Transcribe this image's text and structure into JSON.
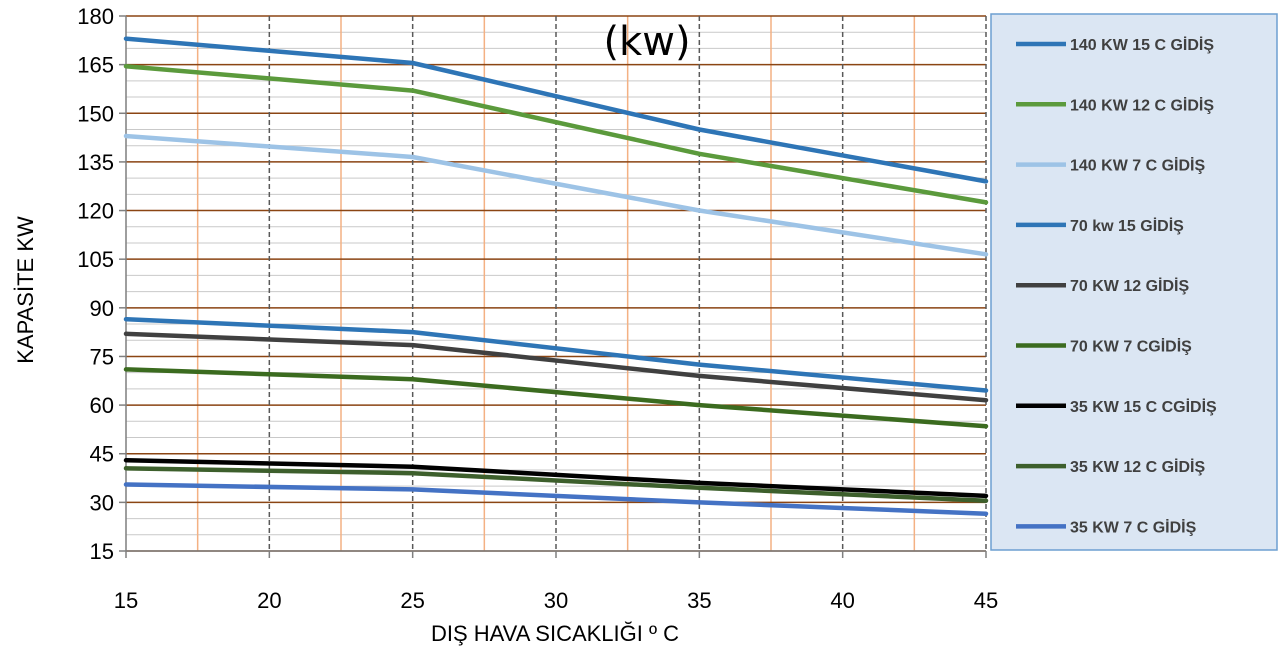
{
  "chart_data": {
    "type": "line",
    "title": "(kw)",
    "xlabel": "DIŞ HAVA SICAKLIĞI º C",
    "ylabel": "KAPASİTE KW",
    "xlim": [
      15,
      45
    ],
    "ylim": [
      15,
      180
    ],
    "x_ticks": [
      15,
      20,
      25,
      30,
      35,
      40,
      45
    ],
    "y_ticks": [
      15,
      30,
      45,
      60,
      75,
      90,
      105,
      120,
      135,
      150,
      165,
      180
    ],
    "x_tick_labels": [
      "15",
      "20",
      "25",
      "30",
      "35",
      "40",
      "45"
    ],
    "y_tick_labels": [
      "15",
      "30",
      "45",
      "60",
      "75",
      "90",
      "105",
      "120",
      "135",
      "150",
      "165",
      "180"
    ],
    "x": [
      15,
      25,
      35,
      45
    ],
    "legend_position": "right",
    "grid": true,
    "series": [
      {
        "name": "140 KW 15 C GİDİŞ",
        "color": "#2e75b6",
        "values": [
          173,
          165.5,
          145,
          129
        ]
      },
      {
        "name": "140 KW 12 C GİDİŞ",
        "color": "#5b9a3c",
        "values": [
          164.5,
          157,
          137.5,
          122.5
        ]
      },
      {
        "name": "140 KW 7 C GİDİŞ",
        "color": "#9dc3e6",
        "values": [
          143,
          136.5,
          120,
          106.5
        ]
      },
      {
        "name": "70 kw 15 GİDİŞ",
        "color": "#2e75b6",
        "values": [
          86.5,
          82.5,
          72.5,
          64.5
        ]
      },
      {
        "name": "70 KW 12 GİDİŞ",
        "color": "#404040",
        "values": [
          82,
          78.5,
          69,
          61.5
        ]
      },
      {
        "name": "70 KW 7 CGİDİŞ",
        "color": "#3b6b1f",
        "values": [
          71,
          68,
          60,
          53.5
        ]
      },
      {
        "name": "35 KW 15 C CGİDİŞ",
        "color": "#000000",
        "values": [
          43,
          41,
          36,
          32
        ]
      },
      {
        "name": "35 KW 12 C GİDİŞ",
        "color": "#3d5f2c",
        "values": [
          40.5,
          39,
          34.5,
          30.5
        ]
      },
      {
        "name": "35 KW 7 C GİDİŞ",
        "color": "#4472c4",
        "values": [
          35.5,
          34,
          30,
          26.5
        ]
      }
    ]
  },
  "colors": {
    "major_grid": "#8b4513",
    "minor_grid_h": "#c9c9c9",
    "minor_grid_v": "#f4b183",
    "major_v_dashed": "#595959",
    "legend_bg": "#dbe6f3",
    "legend_border": "#6d9fd1"
  }
}
